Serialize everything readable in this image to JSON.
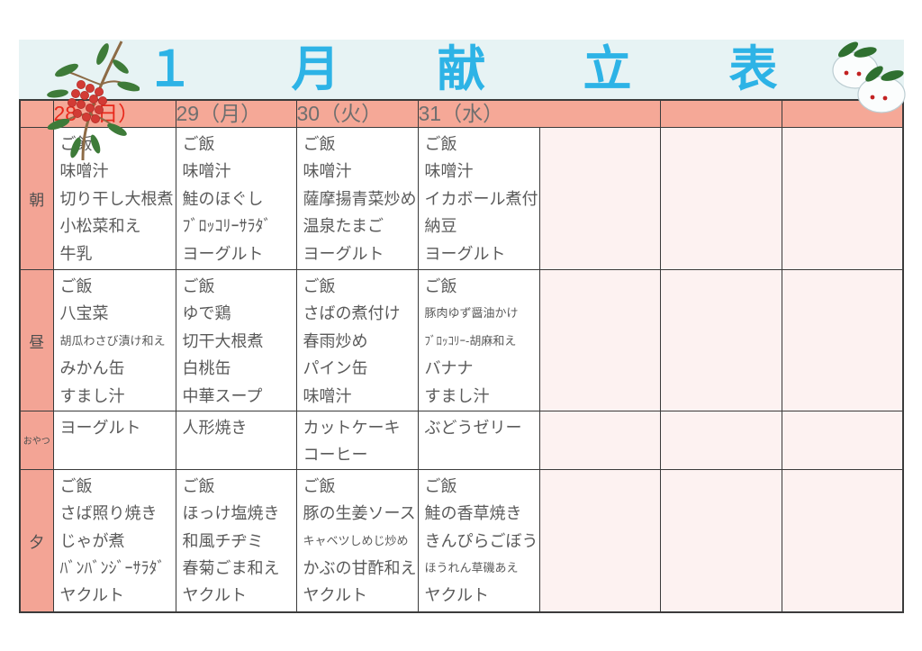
{
  "title": "１月献立表",
  "colors": {
    "title_blue": "#2db3e6",
    "title_band_bg": "#e7f3f4",
    "header_salmon": "#f5a897",
    "empty_cell_pink": "#fdf2f1",
    "date_red": "#e8281b",
    "date_gray": "#6f6f6f",
    "menu_text_gray": "#5a5a5a",
    "grid_line": "#3b3b3b"
  },
  "decorations": {
    "left": "nandina-berry-branch",
    "right": "snow-rabbit-mochi-pair"
  },
  "table": {
    "date_headers": [
      {
        "label": "28（日）",
        "red": true
      },
      {
        "label": "29（月）"
      },
      {
        "label": "30（火）"
      },
      {
        "label": "31（水）"
      }
    ],
    "rows": [
      {
        "label": "朝",
        "cells": [
          [
            "ご飯",
            "味噌汁",
            "切り干し大根煮",
            "小松菜和え",
            "牛乳"
          ],
          [
            "ご飯",
            "味噌汁",
            "鮭のほぐし",
            "ﾌﾞﾛｯｺﾘｰｻﾗﾀﾞ",
            "ヨーグルト"
          ],
          [
            "ご飯",
            "味噌汁",
            "薩摩揚青菜炒め",
            "温泉たまご",
            "ヨーグルト"
          ],
          [
            "ご飯",
            "味噌汁",
            "イカボール煮付",
            "納豆",
            "ヨーグルト"
          ]
        ]
      },
      {
        "label": "昼",
        "cells": [
          [
            "ご飯",
            "八宝菜",
            "胡瓜わさび漬け和え",
            "みかん缶",
            "すまし汁"
          ],
          [
            "ご飯",
            "ゆで鶏",
            "切干大根煮",
            "白桃缶",
            "中華スープ"
          ],
          [
            "ご飯",
            "さばの煮付け",
            "春雨炒め",
            "パイン缶",
            "味噌汁"
          ],
          [
            "ご飯",
            "豚肉ゆず醤油かけ",
            "ﾌﾞﾛｯｺﾘｰ-胡麻和え",
            "バナナ",
            "すまし汁"
          ]
        ]
      },
      {
        "label": "おやつ",
        "cells": [
          [
            "ヨーグルト"
          ],
          [
            "人形焼き"
          ],
          [
            "カットケーキ",
            "コーヒー"
          ],
          [
            "ぶどうゼリー"
          ]
        ]
      },
      {
        "label": "夕",
        "cells": [
          [
            "ご飯",
            "さば照り焼き",
            "じゃが煮",
            "ﾊﾞﾝﾊﾞﾝｼﾞｰｻﾗﾀﾞ",
            "ヤクルト"
          ],
          [
            "ご飯",
            "ほっけ塩焼き",
            "和風チヂミ",
            "春菊ごま和え",
            "ヤクルト"
          ],
          [
            "ご飯",
            "豚の生姜ソース",
            "キャベツしめじ炒め",
            "かぶの甘酢和え",
            "ヤクルト"
          ],
          [
            "ご飯",
            "鮭の香草焼き",
            "きんぴらごぼう",
            "ほうれん草磯あえ",
            "ヤクルト"
          ]
        ]
      }
    ]
  }
}
